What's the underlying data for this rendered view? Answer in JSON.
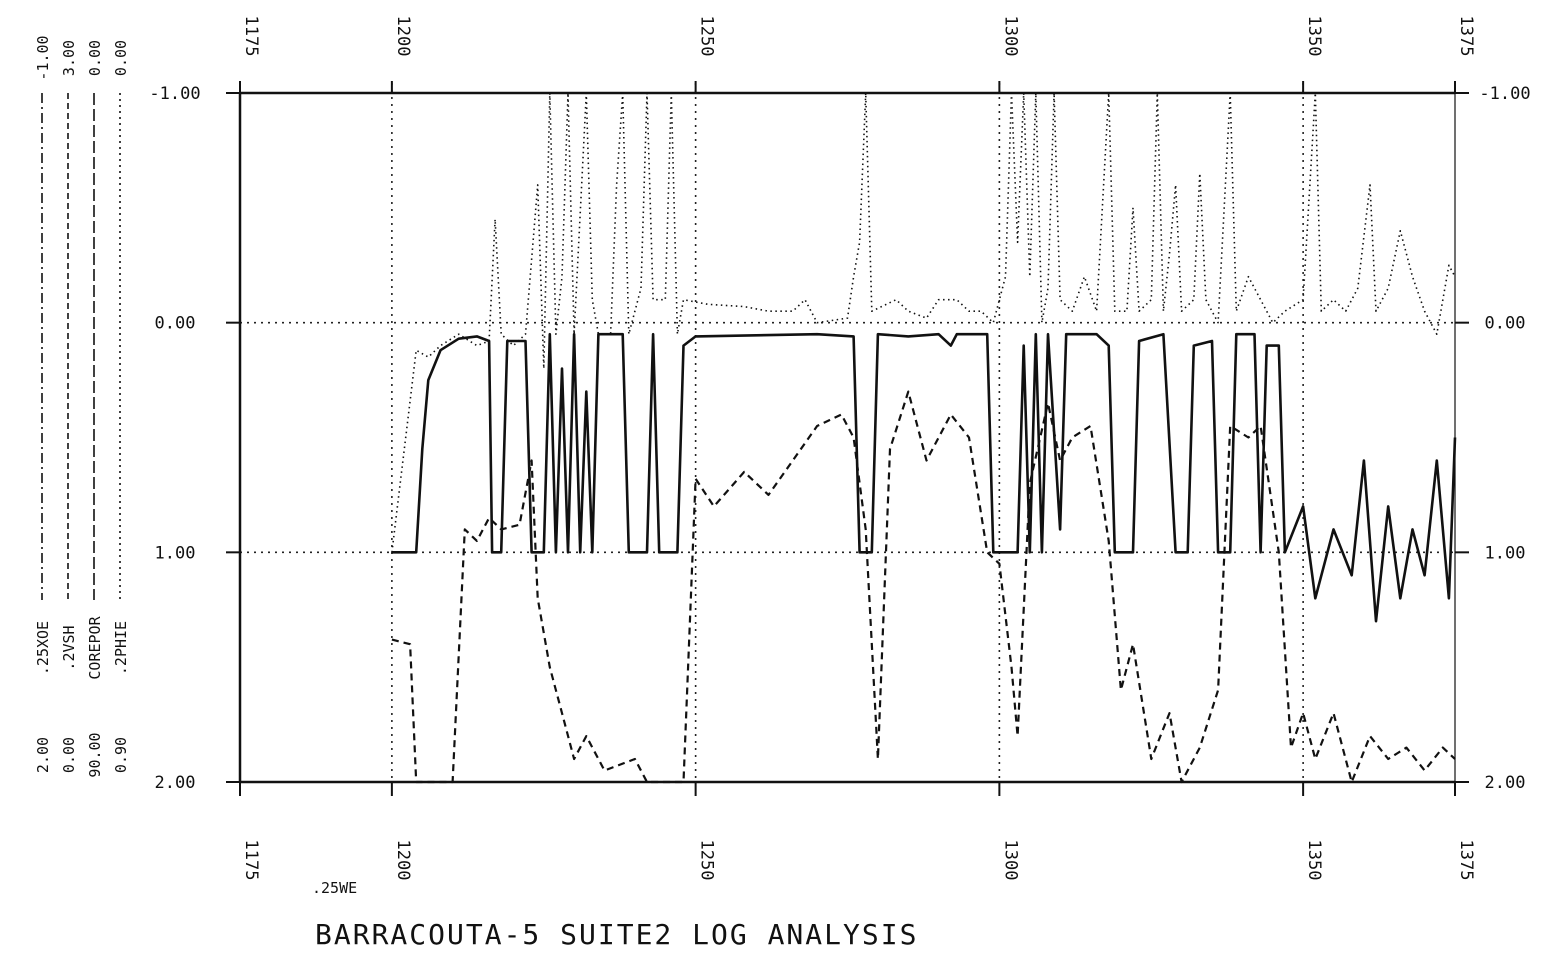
{
  "chart_data": {
    "type": "line",
    "title": "BARRACOUTA-5 SUITE2 LOG ANALYSIS",
    "x_axis": {
      "range": [
        1175,
        1375
      ],
      "tick_labels": [
        "1175",
        "1200",
        "1250",
        "1300",
        "1350",
        "1375"
      ],
      "annotation": ".25WE",
      "gridlines": "dotted at 1200, 1250, 1300, 1350"
    },
    "y_axis": {
      "range": [
        -1.0,
        2.0
      ],
      "inverted": true,
      "left_tick_labels": [
        "-1.00",
        "0.00",
        "1.00",
        "2.00"
      ],
      "right_tick_labels": [
        "-1.00",
        "0.00",
        "1.00",
        "2.00"
      ],
      "gridlines": "dotted at 0.00 and 1.00"
    },
    "curve_scales": [
      {
        "name": ".25XOE",
        "left": "2.00",
        "right": "-1.00",
        "style": "dash-dot"
      },
      {
        "name": ".2VSH",
        "left": "0.00",
        "right": "3.00",
        "style": "dashed"
      },
      {
        "name": "COREPOR",
        "left": "90.00",
        "right": "0.00",
        "style": "long-dash"
      },
      {
        "name": ".2PHIE",
        "left": "0.90",
        "right": "0.00",
        "style": "dotted"
      }
    ],
    "series": [
      {
        "style": "solid",
        "points": [
          [
            1200,
            1
          ],
          [
            1204,
            1
          ],
          [
            1205,
            0.55
          ],
          [
            1206,
            0.25
          ],
          [
            1208,
            0.12
          ],
          [
            1211,
            0.07
          ],
          [
            1214,
            0.06
          ],
          [
            1216,
            0.08
          ],
          [
            1216.5,
            1
          ],
          [
            1218,
            1
          ],
          [
            1219,
            0.08
          ],
          [
            1222,
            0.08
          ],
          [
            1223,
            1
          ],
          [
            1225,
            1
          ],
          [
            1226,
            0.05
          ],
          [
            1227,
            1
          ],
          [
            1228,
            0.2
          ],
          [
            1229,
            1
          ],
          [
            1230,
            0.05
          ],
          [
            1231,
            1
          ],
          [
            1232,
            0.3
          ],
          [
            1233,
            1
          ],
          [
            1234,
            0.05
          ],
          [
            1238,
            0.05
          ],
          [
            1239,
            1
          ],
          [
            1242,
            1
          ],
          [
            1243,
            0.05
          ],
          [
            1244,
            1
          ],
          [
            1247,
            1
          ],
          [
            1248,
            0.1
          ],
          [
            1250,
            0.06
          ],
          [
            1270,
            0.05
          ],
          [
            1276,
            0.06
          ],
          [
            1277,
            1
          ],
          [
            1279,
            1
          ],
          [
            1280,
            0.05
          ],
          [
            1285,
            0.06
          ],
          [
            1290,
            0.05
          ],
          [
            1292,
            0.1
          ],
          [
            1293,
            0.05
          ],
          [
            1298,
            0.05
          ],
          [
            1299,
            1
          ],
          [
            1303,
            1
          ],
          [
            1304,
            0.1
          ],
          [
            1305,
            1
          ],
          [
            1306,
            0.05
          ],
          [
            1307,
            1
          ],
          [
            1308,
            0.05
          ],
          [
            1310,
            0.9
          ],
          [
            1311,
            0.05
          ],
          [
            1316,
            0.05
          ],
          [
            1318,
            0.1
          ],
          [
            1319,
            1
          ],
          [
            1322,
            1
          ],
          [
            1323,
            0.08
          ],
          [
            1327,
            0.05
          ],
          [
            1329,
            1
          ],
          [
            1331,
            1
          ],
          [
            1332,
            0.1
          ],
          [
            1335,
            0.08
          ],
          [
            1336,
            1
          ],
          [
            1338,
            1
          ],
          [
            1339,
            0.05
          ],
          [
            1342,
            0.05
          ],
          [
            1343,
            1
          ],
          [
            1344,
            0.1
          ],
          [
            1346,
            0.1
          ],
          [
            1347,
            1
          ],
          [
            1350,
            0.8
          ],
          [
            1352,
            1.2
          ],
          [
            1355,
            0.9
          ],
          [
            1358,
            1.1
          ],
          [
            1360,
            0.6
          ],
          [
            1362,
            1.3
          ],
          [
            1364,
            0.8
          ],
          [
            1366,
            1.2
          ],
          [
            1368,
            0.9
          ],
          [
            1370,
            1.1
          ],
          [
            1372,
            0.6
          ],
          [
            1374,
            1.2
          ],
          [
            1375,
            0.5
          ]
        ]
      },
      {
        "style": "dashed",
        "points": [
          [
            1200,
            1.38
          ],
          [
            1203,
            1.4
          ],
          [
            1204,
            2
          ],
          [
            1210,
            2
          ],
          [
            1212,
            0.9
          ],
          [
            1214,
            0.95
          ],
          [
            1216,
            0.85
          ],
          [
            1218,
            0.9
          ],
          [
            1221,
            0.88
          ],
          [
            1223,
            0.6
          ],
          [
            1224,
            1.2
          ],
          [
            1226,
            1.5
          ],
          [
            1228,
            1.7
          ],
          [
            1230,
            1.9
          ],
          [
            1232,
            1.8
          ],
          [
            1235,
            1.95
          ],
          [
            1240,
            1.9
          ],
          [
            1242,
            2
          ],
          [
            1248,
            2
          ],
          [
            1250,
            0.68
          ],
          [
            1253,
            0.8
          ],
          [
            1258,
            0.65
          ],
          [
            1262,
            0.75
          ],
          [
            1266,
            0.6
          ],
          [
            1270,
            0.45
          ],
          [
            1274,
            0.4
          ],
          [
            1276,
            0.5
          ],
          [
            1278,
            0.9
          ],
          [
            1280,
            1.9
          ],
          [
            1282,
            0.55
          ],
          [
            1285,
            0.3
          ],
          [
            1288,
            0.6
          ],
          [
            1292,
            0.4
          ],
          [
            1295,
            0.5
          ],
          [
            1298,
            1
          ],
          [
            1300,
            1.05
          ],
          [
            1302,
            1.5
          ],
          [
            1303,
            1.8
          ],
          [
            1305,
            0.7
          ],
          [
            1308,
            0.35
          ],
          [
            1310,
            0.6
          ],
          [
            1312,
            0.5
          ],
          [
            1315,
            0.45
          ],
          [
            1318,
            0.95
          ],
          [
            1320,
            1.6
          ],
          [
            1322,
            1.4
          ],
          [
            1325,
            1.9
          ],
          [
            1328,
            1.7
          ],
          [
            1330,
            2
          ],
          [
            1333,
            1.85
          ],
          [
            1336,
            1.6
          ],
          [
            1338,
            0.45
          ],
          [
            1341,
            0.5
          ],
          [
            1343,
            0.45
          ],
          [
            1346,
            1
          ],
          [
            1348,
            1.85
          ],
          [
            1350,
            1.7
          ],
          [
            1352,
            1.9
          ],
          [
            1355,
            1.7
          ],
          [
            1358,
            2
          ],
          [
            1361,
            1.8
          ],
          [
            1364,
            1.9
          ],
          [
            1367,
            1.85
          ],
          [
            1370,
            1.95
          ],
          [
            1373,
            1.85
          ],
          [
            1375,
            1.9
          ]
        ]
      },
      {
        "style": "dotted",
        "points": [
          [
            1200,
            1
          ],
          [
            1204,
            0.12
          ],
          [
            1206,
            0.15
          ],
          [
            1208,
            0.1
          ],
          [
            1211,
            0.05
          ],
          [
            1214,
            0.1
          ],
          [
            1216,
            0.08
          ],
          [
            1217,
            -0.45
          ],
          [
            1218,
            0.05
          ],
          [
            1220,
            0.1
          ],
          [
            1222,
            0.05
          ],
          [
            1224,
            -0.6
          ],
          [
            1225,
            0.2
          ],
          [
            1226,
            -1
          ],
          [
            1227,
            0.05
          ],
          [
            1228,
            -0.2
          ],
          [
            1229,
            -1
          ],
          [
            1230,
            0.05
          ],
          [
            1232,
            -1
          ],
          [
            1233,
            -0.1
          ],
          [
            1234,
            0.05
          ],
          [
            1236,
            0.05
          ],
          [
            1237,
            -0.6
          ],
          [
            1238,
            -1
          ],
          [
            1239,
            0.05
          ],
          [
            1241,
            -0.15
          ],
          [
            1242,
            -1
          ],
          [
            1243,
            -0.1
          ],
          [
            1245,
            -0.1
          ],
          [
            1246,
            -1
          ],
          [
            1247,
            0.05
          ],
          [
            1248,
            -0.1
          ],
          [
            1252,
            -0.08
          ],
          [
            1258,
            -0.07
          ],
          [
            1262,
            -0.05
          ],
          [
            1266,
            -0.05
          ],
          [
            1268,
            -0.1
          ],
          [
            1270,
            0
          ],
          [
            1275,
            -0.02
          ],
          [
            1276,
            -0.2
          ],
          [
            1277,
            -0.35
          ],
          [
            1278,
            -1
          ],
          [
            1279,
            -0.05
          ],
          [
            1283,
            -0.1
          ],
          [
            1285,
            -0.05
          ],
          [
            1288,
            -0.02
          ],
          [
            1290,
            -0.1
          ],
          [
            1293,
            -0.1
          ],
          [
            1295,
            -0.05
          ],
          [
            1297,
            -0.05
          ],
          [
            1299,
            0
          ],
          [
            1301,
            -0.2
          ],
          [
            1302,
            -1
          ],
          [
            1303,
            -0.35
          ],
          [
            1304,
            -1
          ],
          [
            1305,
            -0.2
          ],
          [
            1306,
            -1
          ],
          [
            1307,
            0
          ],
          [
            1308,
            -0.15
          ],
          [
            1309,
            -1
          ],
          [
            1310,
            -0.1
          ],
          [
            1312,
            -0.05
          ],
          [
            1314,
            -0.2
          ],
          [
            1316,
            -0.05
          ],
          [
            1318,
            -1
          ],
          [
            1319,
            -0.05
          ],
          [
            1321,
            -0.05
          ],
          [
            1322,
            -0.5
          ],
          [
            1323,
            -0.05
          ],
          [
            1325,
            -0.1
          ],
          [
            1326,
            -1
          ],
          [
            1327,
            -0.05
          ],
          [
            1328,
            -0.3
          ],
          [
            1329,
            -0.6
          ],
          [
            1330,
            -0.05
          ],
          [
            1332,
            -0.1
          ],
          [
            1333,
            -0.65
          ],
          [
            1334,
            -0.1
          ],
          [
            1336,
            0
          ],
          [
            1337,
            -0.5
          ],
          [
            1338,
            -1
          ],
          [
            1339,
            -0.05
          ],
          [
            1341,
            -0.2
          ],
          [
            1343,
            -0.1
          ],
          [
            1345,
            0
          ],
          [
            1347,
            -0.05
          ],
          [
            1350,
            -0.1
          ],
          [
            1352,
            -1
          ],
          [
            1353,
            -0.05
          ],
          [
            1355,
            -0.1
          ],
          [
            1357,
            -0.05
          ],
          [
            1359,
            -0.15
          ],
          [
            1361,
            -0.6
          ],
          [
            1362,
            -0.05
          ],
          [
            1364,
            -0.15
          ],
          [
            1366,
            -0.4
          ],
          [
            1368,
            -0.2
          ],
          [
            1370,
            -0.05
          ],
          [
            1372,
            0.05
          ],
          [
            1374,
            -0.25
          ],
          [
            1375,
            -0.2
          ]
        ]
      }
    ]
  }
}
